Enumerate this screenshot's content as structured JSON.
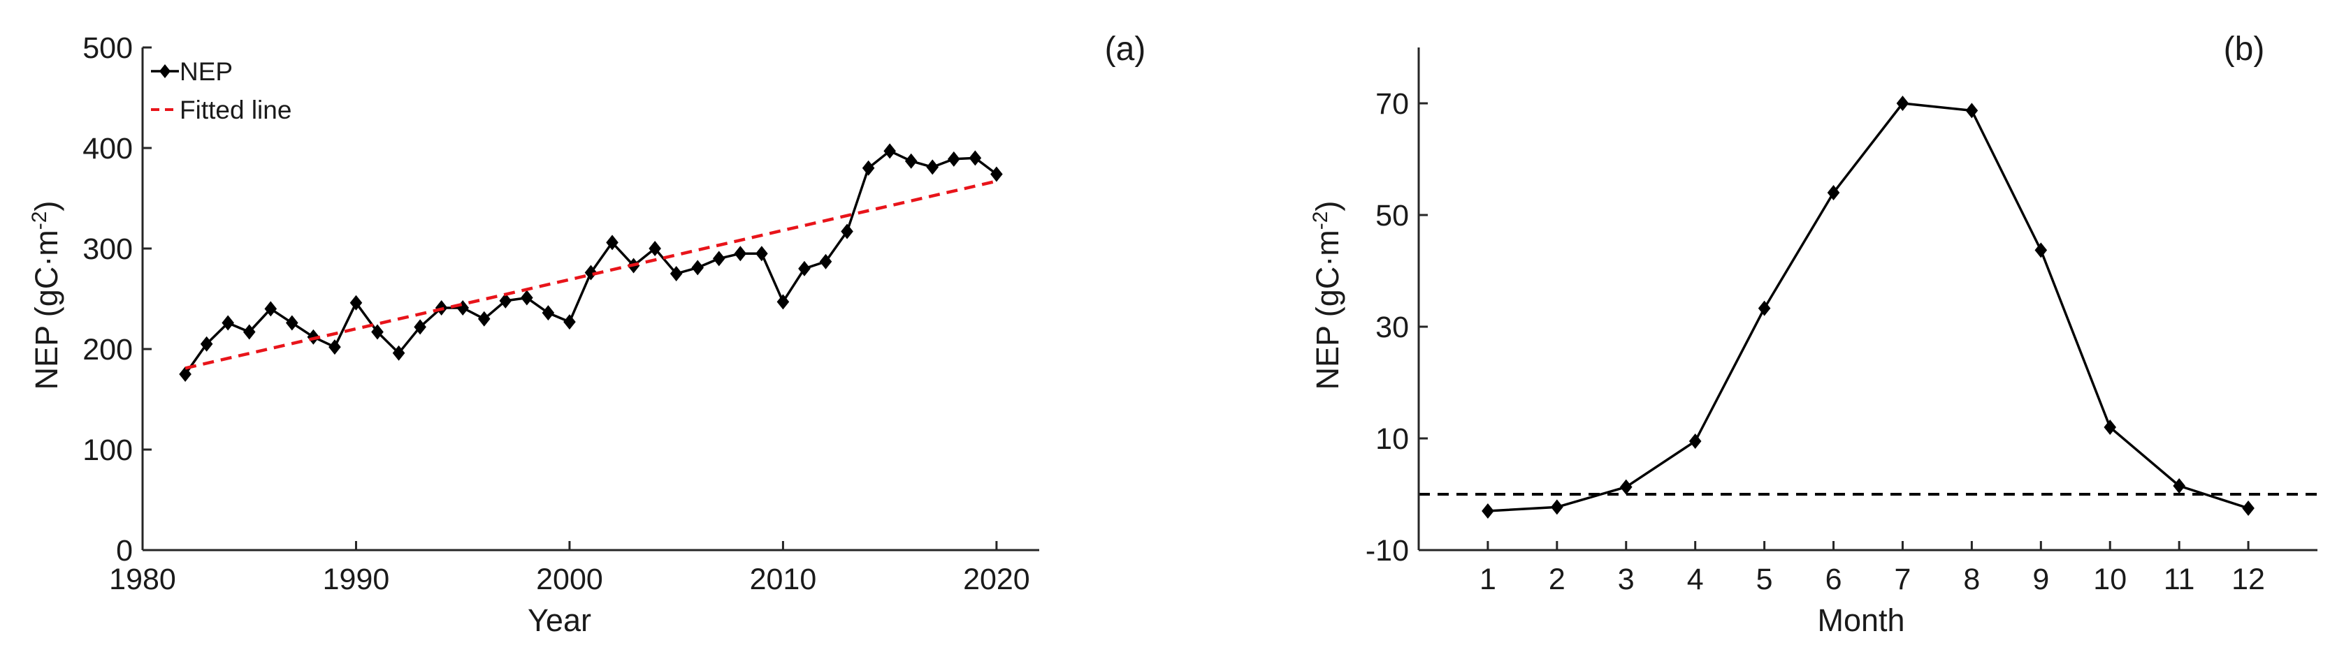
{
  "chart_data": [
    {
      "type": "line",
      "panel_label": "(a)",
      "xlabel": "Year",
      "ylabel_base": "NEP (gC·m",
      "ylabel_exp": "-2",
      "ylabel_close": ")",
      "xlim": [
        1980,
        2022
      ],
      "ylim": [
        0,
        500
      ],
      "xticks": [
        1980,
        1990,
        2000,
        2010,
        2020
      ],
      "yticks": [
        0,
        100,
        200,
        300,
        400,
        500
      ],
      "grid": false,
      "legend_position": "top-left",
      "series": [
        {
          "name": "NEP",
          "color": "#000000",
          "marker": "diamond",
          "x": [
            1982,
            1983,
            1984,
            1985,
            1986,
            1987,
            1988,
            1989,
            1990,
            1991,
            1992,
            1993,
            1994,
            1995,
            1996,
            1997,
            1998,
            1999,
            2000,
            2001,
            2002,
            2003,
            2004,
            2005,
            2006,
            2007,
            2008,
            2009,
            2010,
            2011,
            2012,
            2013,
            2014,
            2015,
            2016,
            2017,
            2018,
            2019,
            2020
          ],
          "y": [
            175,
            205,
            226,
            217,
            240,
            226,
            212,
            202,
            246,
            217,
            196,
            222,
            241,
            241,
            230,
            248,
            251,
            236,
            227,
            276,
            306,
            283,
            300,
            275,
            281,
            290,
            295,
            295,
            247,
            280,
            287,
            317,
            380,
            397,
            387,
            381,
            389,
            390,
            374
          ]
        },
        {
          "name": "Fitted line",
          "color": "#e8141a",
          "style": "dashed",
          "x": [
            1982,
            2020
          ],
          "y": [
            181,
            367
          ]
        }
      ]
    },
    {
      "type": "line",
      "panel_label": "(b)",
      "xlabel": "Month",
      "ylabel_base": "NEP (gC·m",
      "ylabel_exp": "-2",
      "ylabel_close": ")",
      "xlim": [
        0,
        13
      ],
      "ylim": [
        -10,
        80
      ],
      "xticks": [
        1,
        2,
        3,
        4,
        5,
        6,
        7,
        8,
        9,
        10,
        11,
        12
      ],
      "yticks": [
        -10,
        10,
        30,
        50,
        70
      ],
      "grid": false,
      "reference_line": 0,
      "series": [
        {
          "color": "#000000",
          "marker": "diamond",
          "x": [
            1,
            2,
            3,
            4,
            5,
            6,
            7,
            8,
            9,
            10,
            11,
            12
          ],
          "y": [
            -3.0,
            -2.3,
            1.3,
            9.5,
            33.3,
            54.0,
            70.0,
            68.7,
            43.7,
            12.0,
            1.5,
            -2.5
          ]
        }
      ]
    }
  ]
}
